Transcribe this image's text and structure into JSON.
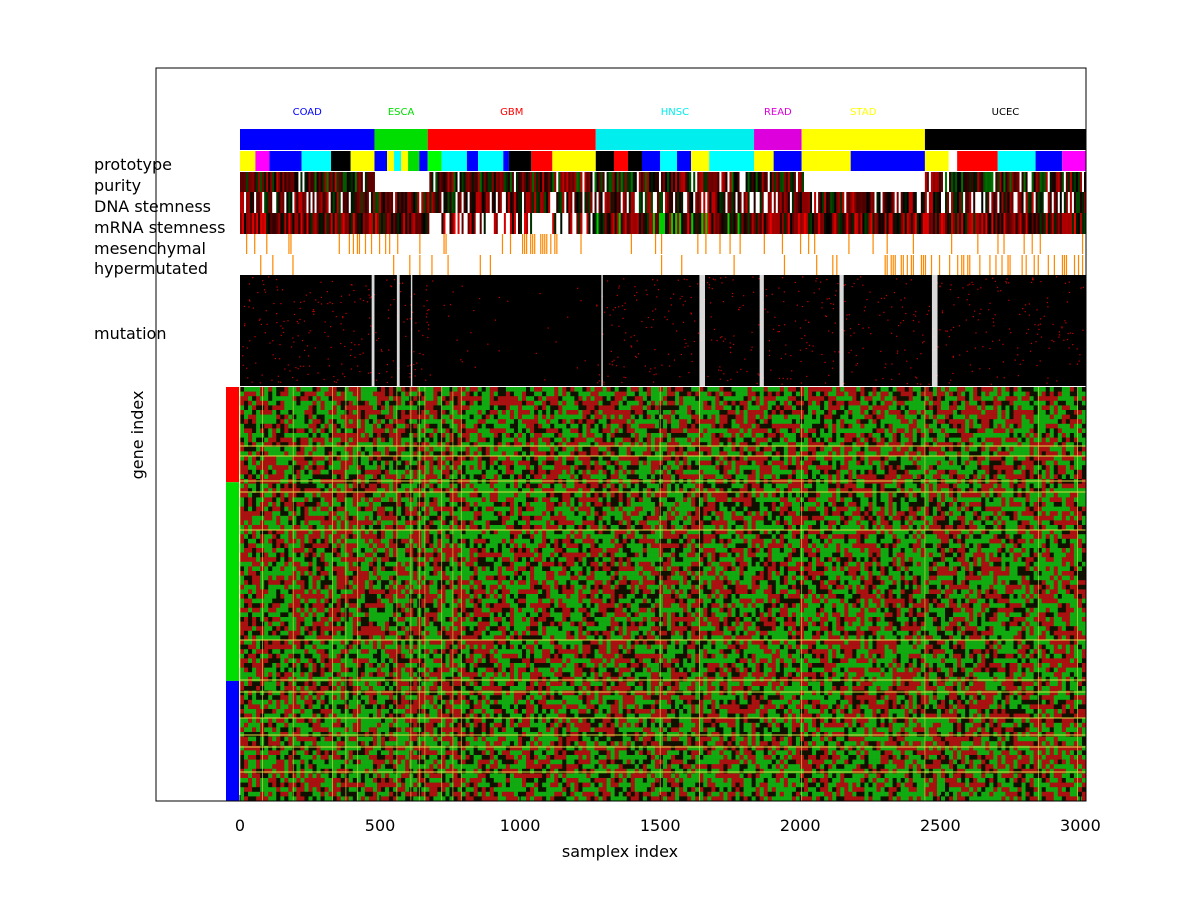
{
  "chart_data": {
    "type": "heatmap",
    "title": "",
    "xlabel": "samplex index",
    "ylabel": "gene index",
    "xlim": [
      -300,
      3020
    ],
    "xticks": [
      0,
      500,
      1000,
      1500,
      2000,
      2500,
      3000
    ],
    "cohorts": [
      {
        "name": "COAD",
        "start": 0,
        "end": 480,
        "color": "#0000ff"
      },
      {
        "name": "ESCA",
        "start": 480,
        "end": 670,
        "color": "#00dd00"
      },
      {
        "name": "GBM",
        "start": 670,
        "end": 1270,
        "color": "#ff0000"
      },
      {
        "name": "HNSC",
        "start": 1270,
        "end": 1835,
        "color": "#00eeee"
      },
      {
        "name": "READ",
        "start": 1835,
        "end": 2005,
        "color": "#dd00dd"
      },
      {
        "name": "STAD",
        "start": 2005,
        "end": 2445,
        "color": "#ffff00"
      },
      {
        "name": "UCEC",
        "start": 2445,
        "end": 3020,
        "color": "#000000"
      }
    ],
    "annotation_rows": [
      "prototype",
      "purity",
      "DNA stemness",
      "mRNA stemness",
      "mesenchymal",
      "hypermutated"
    ],
    "mutation_row_label": "mutation",
    "prototype_segments": [
      [
        0,
        55,
        "#ffff00"
      ],
      [
        55,
        105,
        "#ff00ff"
      ],
      [
        105,
        220,
        "#0000ff"
      ],
      [
        220,
        325,
        "#00ffff"
      ],
      [
        325,
        395,
        "#000000"
      ],
      [
        395,
        480,
        "#ffff00"
      ],
      [
        480,
        525,
        "#0000ff"
      ],
      [
        525,
        550,
        "#ffff00"
      ],
      [
        550,
        575,
        "#00ffff"
      ],
      [
        575,
        600,
        "#ffff00"
      ],
      [
        600,
        640,
        "#00dd00"
      ],
      [
        640,
        670,
        "#0000ff"
      ],
      [
        670,
        720,
        "#00ff00"
      ],
      [
        720,
        810,
        "#00ffff"
      ],
      [
        810,
        850,
        "#0000ff"
      ],
      [
        850,
        940,
        "#00ffff"
      ],
      [
        940,
        960,
        "#0000ff"
      ],
      [
        960,
        1040,
        "#000000"
      ],
      [
        1040,
        1115,
        "#ff0000"
      ],
      [
        1115,
        1270,
        "#ffff00"
      ],
      [
        1270,
        1335,
        "#000000"
      ],
      [
        1335,
        1385,
        "#ff0000"
      ],
      [
        1385,
        1435,
        "#000000"
      ],
      [
        1435,
        1500,
        "#0000ff"
      ],
      [
        1500,
        1560,
        "#00ffff"
      ],
      [
        1560,
        1610,
        "#0000ff"
      ],
      [
        1610,
        1675,
        "#ffff00"
      ],
      [
        1675,
        1835,
        "#00ffff"
      ],
      [
        1835,
        1905,
        "#ffff00"
      ],
      [
        1905,
        2005,
        "#0000ff"
      ],
      [
        2005,
        2180,
        "#ffff00"
      ],
      [
        2180,
        2445,
        "#0000ff"
      ],
      [
        2445,
        2530,
        "#ffff00"
      ],
      [
        2530,
        2560,
        "#ffffff"
      ],
      [
        2560,
        2705,
        "#ff0000"
      ],
      [
        2705,
        2840,
        "#00ffff"
      ],
      [
        2840,
        2935,
        "#0000ff"
      ],
      [
        2935,
        3020,
        "#ff00ff"
      ]
    ],
    "gene_groups": [
      {
        "start_fraction": 0.0,
        "end_fraction": 0.23,
        "color": "#ff0000"
      },
      {
        "start_fraction": 0.23,
        "end_fraction": 0.71,
        "color": "#00dd00"
      },
      {
        "start_fraction": 0.71,
        "end_fraction": 1.0,
        "color": "#0000ff"
      }
    ],
    "heatmap_colors": {
      "low": "#00cc00",
      "mid": "#000000",
      "high": "#cc0000",
      "missing": "#ffffff"
    },
    "annotation_highlight_color": "#ff8800",
    "cluster_divider_color": "#dddd44",
    "grid": false
  }
}
